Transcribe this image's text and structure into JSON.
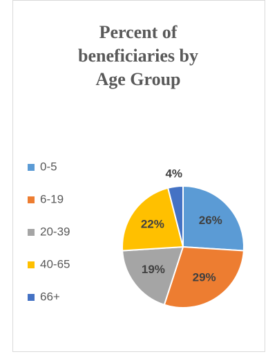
{
  "chart_data": {
    "type": "pie",
    "title": "Percent of beneficiaries by Age Group",
    "categories": [
      "0-5",
      "6-19",
      "20-39",
      "40-65",
      "66+"
    ],
    "values": [
      26,
      29,
      19,
      22,
      4
    ],
    "value_labels": [
      "26%",
      "29%",
      "19%",
      "22%",
      "4%"
    ],
    "colors": [
      "#5b9bd5",
      "#ed7d31",
      "#a5a5a5",
      "#ffc000",
      "#4472c4"
    ],
    "legend": "left"
  }
}
